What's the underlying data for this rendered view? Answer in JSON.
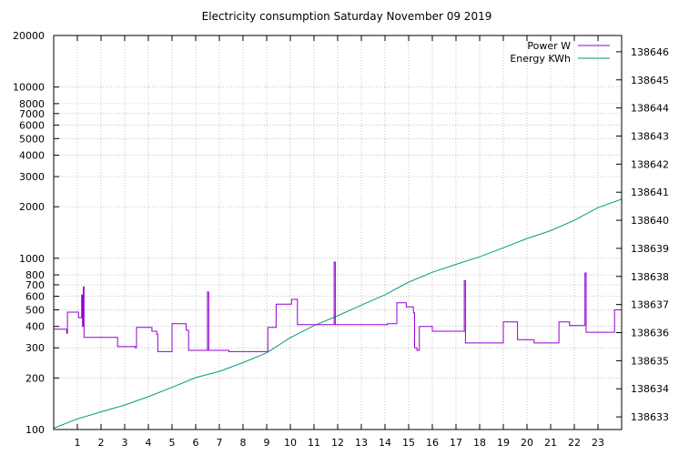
{
  "chart_data": {
    "type": "line",
    "title": "Electricity consumption Saturday November 09 2019",
    "xlim": [
      0,
      24
    ],
    "x_ticks": [
      1,
      2,
      3,
      4,
      5,
      6,
      7,
      8,
      9,
      10,
      11,
      12,
      13,
      14,
      15,
      16,
      17,
      18,
      19,
      20,
      21,
      22,
      23
    ],
    "y_scale": "log",
    "ylim": [
      100,
      20000
    ],
    "y_ticks": [
      100,
      200,
      300,
      400,
      500,
      600,
      700,
      800,
      1000,
      2000,
      3000,
      4000,
      5000,
      6000,
      7000,
      8000,
      10000,
      20000
    ],
    "y2_scale": "linear",
    "y2lim": [
      138632.55,
      138646.58
    ],
    "y2_ticks": [
      138633,
      138634,
      138635,
      138636,
      138637,
      138638,
      138639,
      138640,
      138641,
      138642,
      138643,
      138644,
      138645,
      138646
    ],
    "grid": true,
    "legend_position": "top-right",
    "colors": {
      "power": "#9400d3",
      "energy": "#009e73"
    },
    "series": [
      {
        "name": "Power W",
        "axis": "y",
        "points": [
          [
            0,
            385
          ],
          [
            0.55,
            385
          ],
          [
            0.55,
            365
          ],
          [
            0.58,
            365
          ],
          [
            0.58,
            485
          ],
          [
            1.05,
            485
          ],
          [
            1.05,
            450
          ],
          [
            1.18,
            450
          ],
          [
            1.18,
            610
          ],
          [
            1.22,
            610
          ],
          [
            1.22,
            400
          ],
          [
            1.25,
            400
          ],
          [
            1.25,
            680
          ],
          [
            1.28,
            680
          ],
          [
            1.28,
            345
          ],
          [
            2.7,
            345
          ],
          [
            2.7,
            305
          ],
          [
            3.45,
            305
          ],
          [
            3.45,
            300
          ],
          [
            3.5,
            300
          ],
          [
            3.5,
            395
          ],
          [
            4.15,
            395
          ],
          [
            4.15,
            375
          ],
          [
            4.35,
            375
          ],
          [
            4.35,
            360
          ],
          [
            4.4,
            360
          ],
          [
            4.4,
            285
          ],
          [
            5.0,
            285
          ],
          [
            5.0,
            415
          ],
          [
            5.6,
            415
          ],
          [
            5.6,
            380
          ],
          [
            5.7,
            380
          ],
          [
            5.7,
            290
          ],
          [
            6.5,
            290
          ],
          [
            6.5,
            635
          ],
          [
            6.55,
            635
          ],
          [
            6.55,
            290
          ],
          [
            7.4,
            290
          ],
          [
            7.4,
            285
          ],
          [
            9.05,
            285
          ],
          [
            9.05,
            395
          ],
          [
            9.4,
            395
          ],
          [
            9.4,
            540
          ],
          [
            10.05,
            540
          ],
          [
            10.05,
            575
          ],
          [
            10.3,
            575
          ],
          [
            10.3,
            410
          ],
          [
            11.85,
            410
          ],
          [
            11.85,
            950
          ],
          [
            11.9,
            950
          ],
          [
            11.9,
            410
          ],
          [
            14.1,
            410
          ],
          [
            14.1,
            415
          ],
          [
            14.5,
            415
          ],
          [
            14.5,
            550
          ],
          [
            14.9,
            550
          ],
          [
            14.9,
            520
          ],
          [
            15.2,
            520
          ],
          [
            15.2,
            480
          ],
          [
            15.25,
            480
          ],
          [
            15.25,
            300
          ],
          [
            15.35,
            300
          ],
          [
            15.35,
            290
          ],
          [
            15.45,
            290
          ],
          [
            15.45,
            400
          ],
          [
            16.0,
            400
          ],
          [
            16.0,
            375
          ],
          [
            17.35,
            375
          ],
          [
            17.35,
            740
          ],
          [
            17.4,
            740
          ],
          [
            17.4,
            320
          ],
          [
            19.0,
            320
          ],
          [
            19.0,
            425
          ],
          [
            19.6,
            425
          ],
          [
            19.6,
            335
          ],
          [
            20.3,
            335
          ],
          [
            20.3,
            320
          ],
          [
            21.35,
            320
          ],
          [
            21.35,
            425
          ],
          [
            21.8,
            425
          ],
          [
            21.8,
            405
          ],
          [
            22.45,
            405
          ],
          [
            22.45,
            820
          ],
          [
            22.5,
            820
          ],
          [
            22.5,
            370
          ],
          [
            23.7,
            370
          ],
          [
            23.7,
            500
          ],
          [
            24,
            500
          ]
        ]
      },
      {
        "name": "Energy KWh",
        "axis": "y2",
        "points": [
          [
            0,
            138632.6
          ],
          [
            1,
            138632.93
          ],
          [
            2,
            138633.18
          ],
          [
            3,
            138633.42
          ],
          [
            4,
            138633.72
          ],
          [
            5,
            138634.05
          ],
          [
            6,
            138634.4
          ],
          [
            7,
            138634.62
          ],
          [
            8,
            138634.93
          ],
          [
            9,
            138635.28
          ],
          [
            10,
            138635.82
          ],
          [
            11,
            138636.25
          ],
          [
            12,
            138636.6
          ],
          [
            13,
            138636.98
          ],
          [
            14,
            138637.35
          ],
          [
            15,
            138637.8
          ],
          [
            16,
            138638.15
          ],
          [
            17,
            138638.43
          ],
          [
            18,
            138638.7
          ],
          [
            19,
            138639.02
          ],
          [
            20,
            138639.35
          ],
          [
            21,
            138639.63
          ],
          [
            22,
            138640.0
          ],
          [
            23,
            138640.45
          ],
          [
            24,
            138640.75
          ]
        ]
      }
    ]
  }
}
